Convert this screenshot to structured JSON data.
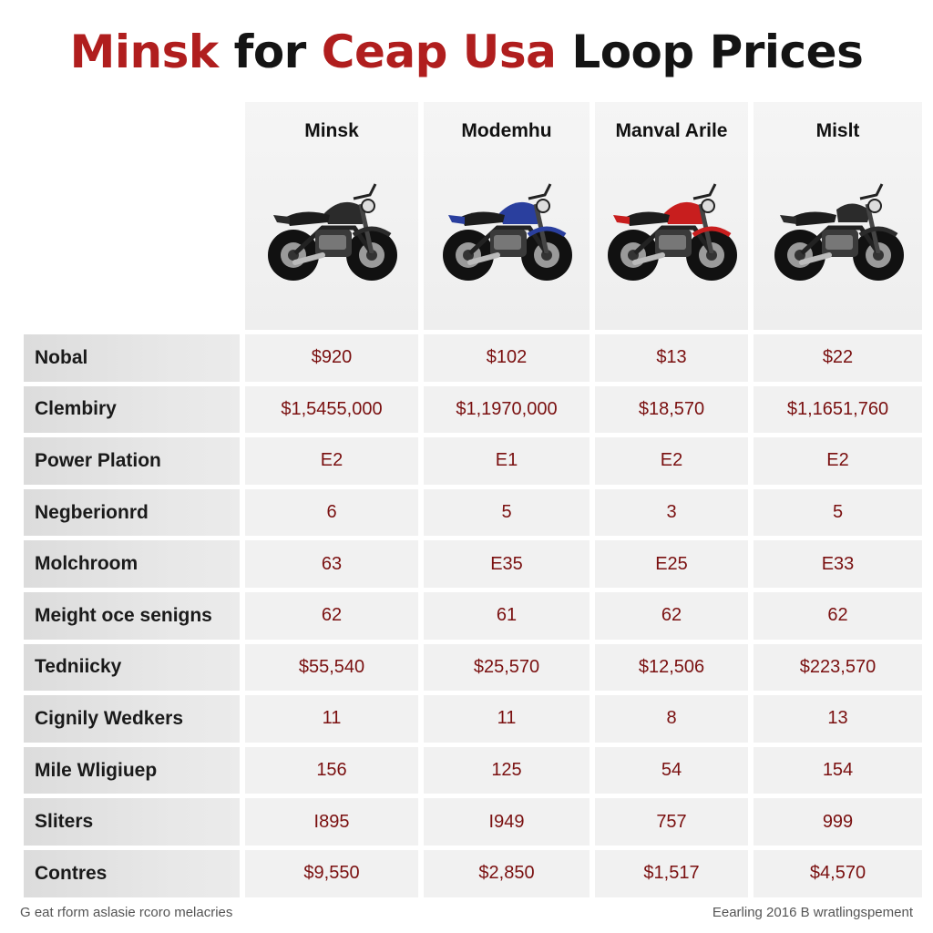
{
  "title": {
    "part1": "Minsk",
    "part2": "for",
    "part3": "Ceap Usa",
    "part4": "Loop Prices"
  },
  "colors": {
    "title_red": "#b01e1e",
    "value_text": "#7a1010",
    "header_bg": "#f1f1f1",
    "label_bg": "#dcdcdc"
  },
  "columns": [
    {
      "name": "Minsk",
      "bike_color": "#2b2b2b",
      "icon": "black-motorcycle-icon"
    },
    {
      "name": "Modemhu",
      "bike_color": "#2a3f9e",
      "icon": "blue-motorcycle-icon"
    },
    {
      "name": "Manval Arile",
      "bike_color": "#c81e1e",
      "icon": "red-motorcycle-icon"
    },
    {
      "name": "Mislt",
      "bike_color": "#2b2b2b",
      "icon": "black-cruiser-motorcycle-icon"
    }
  ],
  "rows": [
    {
      "label": "Nobal",
      "values": [
        "$920",
        "$102",
        "$13",
        "$22"
      ]
    },
    {
      "label": "Clembiry",
      "values": [
        "$1,5455,000",
        "$1,1970,000",
        "$18,570",
        "$1,1651,760"
      ]
    },
    {
      "label": "Power Plation",
      "values": [
        "E2",
        "E1",
        "E2",
        "E2"
      ]
    },
    {
      "label": "Negberionrd",
      "values": [
        "6",
        "5",
        "3",
        "5"
      ]
    },
    {
      "label": "Molchroom",
      "values": [
        "63",
        "E35",
        "E25",
        "E33"
      ]
    },
    {
      "label": "Meight oce senigns",
      "values": [
        "62",
        "61",
        "62",
        "62"
      ]
    },
    {
      "label": "Tedniicky",
      "values": [
        "$55,540",
        "$25,570",
        "$12,506",
        "$223,570"
      ]
    },
    {
      "label": "Cignily Wedkers",
      "values": [
        "11",
        "11",
        "8",
        "13"
      ]
    },
    {
      "label": "Mile Wligiuep",
      "values": [
        "156",
        "125",
        "54",
        "154"
      ]
    },
    {
      "label": "Sliters",
      "values": [
        "I895",
        "I949",
        "757",
        "999"
      ]
    },
    {
      "label": "Contres",
      "values": [
        "$9,550",
        "$2,850",
        "$1,517",
        "$4,570"
      ]
    }
  ],
  "footer": {
    "left": "G eat rform aslasie rcoro melacries",
    "right": "Eearling 2016 B wratlingspement"
  }
}
